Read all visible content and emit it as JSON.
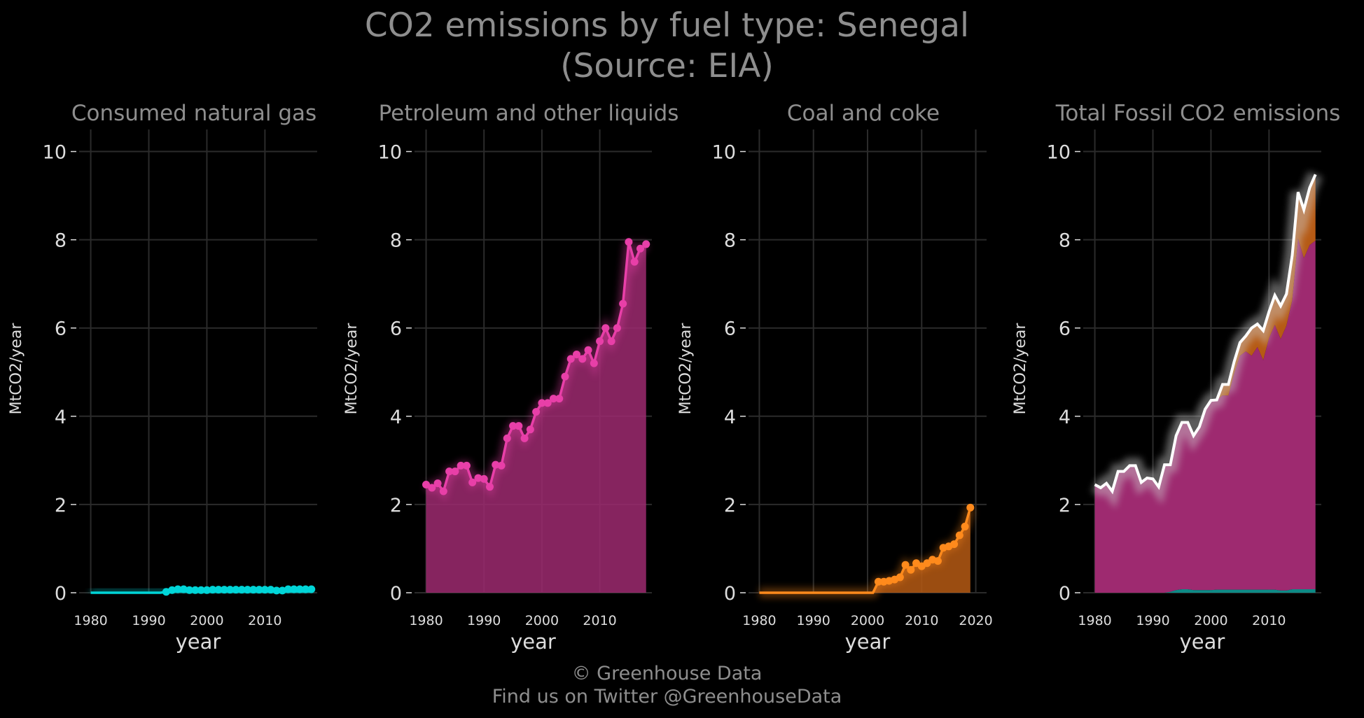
{
  "title_line1": "CO2 emissions by fuel type: Senegal",
  "title_line2": "(Source: EIA)",
  "credit_line1": "© Greenhouse Data",
  "credit_line2": "Find us on Twitter @GreenhouseData",
  "colors": {
    "background": "#000000",
    "grid": "#2b2b2b",
    "text": "#dddddd",
    "title": "#8e8e8e",
    "gas": "#00d5d8",
    "petroleum": "#e83fa8",
    "petroleum_fill": "#9e2a70",
    "coal": "#ff8a1c",
    "coal_fill": "#b65a14",
    "total": "#ffffff"
  },
  "chart_data": [
    {
      "type": "area",
      "title": "Consumed natural gas",
      "xlabel": "year",
      "ylabel": "MtCO2/year",
      "ylim": [
        0,
        10.5
      ],
      "xlim": [
        1978,
        2019
      ],
      "xticks": [
        1980,
        1990,
        2000,
        2010
      ],
      "yticks": [
        0,
        2,
        4,
        6,
        8,
        10
      ],
      "grid": true,
      "series": [
        {
          "color_key": "gas",
          "x": [
            1980,
            1981,
            1982,
            1983,
            1984,
            1985,
            1986,
            1987,
            1988,
            1989,
            1990,
            1991,
            1992,
            1993,
            1994,
            1995,
            1996,
            1997,
            1998,
            1999,
            2000,
            2001,
            2002,
            2003,
            2004,
            2005,
            2006,
            2007,
            2008,
            2009,
            2010,
            2011,
            2012,
            2013,
            2014,
            2015,
            2016,
            2017,
            2018
          ],
          "values": [
            0,
            0,
            0,
            0,
            0,
            0,
            0,
            0,
            0,
            0,
            0,
            0,
            0,
            0.02,
            0.06,
            0.08,
            0.08,
            0.06,
            0.06,
            0.06,
            0.06,
            0.07,
            0.07,
            0.07,
            0.07,
            0.07,
            0.07,
            0.07,
            0.07,
            0.07,
            0.07,
            0.07,
            0.05,
            0.05,
            0.08,
            0.08,
            0.08,
            0.08,
            0.08
          ],
          "markers_from_index": 13
        }
      ]
    },
    {
      "type": "area",
      "title": "Petroleum and other liquids",
      "xlabel": "year",
      "ylabel": "MtCO2/year",
      "ylim": [
        0,
        10.5
      ],
      "xlim": [
        1978,
        2019
      ],
      "xticks": [
        1980,
        1990,
        2000,
        2010
      ],
      "yticks": [
        0,
        2,
        4,
        6,
        8,
        10
      ],
      "grid": true,
      "series": [
        {
          "color_key": "petroleum",
          "x": [
            1980,
            1981,
            1982,
            1983,
            1984,
            1985,
            1986,
            1987,
            1988,
            1989,
            1990,
            1991,
            1992,
            1993,
            1994,
            1995,
            1996,
            1997,
            1998,
            1999,
            2000,
            2001,
            2002,
            2003,
            2004,
            2005,
            2006,
            2007,
            2008,
            2009,
            2010,
            2011,
            2012,
            2013,
            2014,
            2015,
            2016,
            2017,
            2018
          ],
          "values": [
            2.45,
            2.38,
            2.48,
            2.3,
            2.75,
            2.75,
            2.88,
            2.88,
            2.5,
            2.6,
            2.58,
            2.4,
            2.9,
            2.88,
            3.5,
            3.78,
            3.78,
            3.5,
            3.7,
            4.1,
            4.3,
            4.3,
            4.4,
            4.4,
            4.9,
            5.3,
            5.4,
            5.3,
            5.5,
            5.2,
            5.7,
            6.0,
            5.7,
            6.0,
            6.55,
            7.95,
            7.5,
            7.8,
            7.9
          ],
          "markers_from_index": 0
        }
      ]
    },
    {
      "type": "area",
      "title": "Coal and coke",
      "xlabel": "year",
      "ylabel": "MtCO2/year",
      "ylim": [
        0,
        10.5
      ],
      "xlim": [
        1978,
        2022
      ],
      "xticks": [
        1980,
        1990,
        2000,
        2010,
        2020
      ],
      "yticks": [
        0,
        2,
        4,
        6,
        8,
        10
      ],
      "grid": true,
      "series": [
        {
          "color_key": "coal",
          "x": [
            1980,
            1981,
            1982,
            1983,
            1984,
            1985,
            1986,
            1987,
            1988,
            1989,
            1990,
            1991,
            1992,
            1993,
            1994,
            1995,
            1996,
            1997,
            1998,
            1999,
            2000,
            2001,
            2002,
            2003,
            2004,
            2005,
            2006,
            2007,
            2008,
            2009,
            2010,
            2011,
            2012,
            2013,
            2014,
            2015,
            2016,
            2017,
            2018,
            2019
          ],
          "values": [
            0,
            0,
            0,
            0,
            0,
            0,
            0,
            0,
            0,
            0,
            0,
            0,
            0,
            0,
            0,
            0,
            0,
            0,
            0,
            0,
            0,
            0,
            0.25,
            0.25,
            0.27,
            0.3,
            0.35,
            0.63,
            0.52,
            0.67,
            0.6,
            0.67,
            0.75,
            0.72,
            1.02,
            1.05,
            1.1,
            1.3,
            1.5,
            1.93
          ],
          "markers_from_index": 22
        }
      ]
    },
    {
      "type": "area",
      "title": "Total Fossil CO2 emissions",
      "xlabel": "year",
      "ylabel": "MtCO2/year",
      "ylim": [
        0,
        10.5
      ],
      "xlim": [
        1978,
        2019
      ],
      "xticks": [
        1980,
        1990,
        2000,
        2010
      ],
      "yticks": [
        0,
        2,
        4,
        6,
        8,
        10
      ],
      "grid": true,
      "stacked": true,
      "x": [
        1980,
        1981,
        1982,
        1983,
        1984,
        1985,
        1986,
        1987,
        1988,
        1989,
        1990,
        1991,
        1992,
        1993,
        1994,
        1995,
        1996,
        1997,
        1998,
        1999,
        2000,
        2001,
        2002,
        2003,
        2004,
        2005,
        2006,
        2007,
        2008,
        2009,
        2010,
        2011,
        2012,
        2013,
        2014,
        2015,
        2016,
        2017,
        2018
      ],
      "series": [
        {
          "color_key": "gas",
          "stack": "gas"
        },
        {
          "color_key": "petroleum",
          "stack": "petroleum"
        },
        {
          "color_key": "coal",
          "stack": "coal"
        }
      ],
      "total": [
        2.45,
        2.38,
        2.48,
        2.3,
        2.75,
        2.75,
        2.88,
        2.88,
        2.5,
        2.6,
        2.58,
        2.4,
        2.9,
        2.9,
        3.56,
        3.86,
        3.86,
        3.56,
        3.76,
        4.16,
        4.36,
        4.37,
        4.72,
        4.72,
        5.24,
        5.67,
        5.82,
        6.0,
        6.09,
        5.94,
        6.37,
        6.74,
        6.5,
        6.77,
        7.65,
        9.08,
        8.68,
        9.18,
        9.48
      ]
    }
  ]
}
